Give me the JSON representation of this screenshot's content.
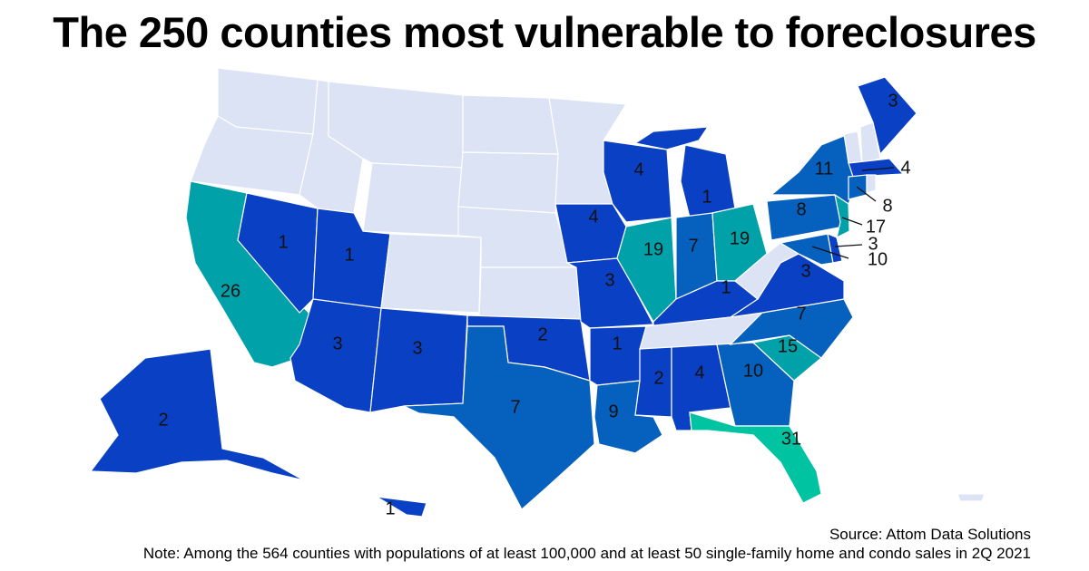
{
  "title": "The 250 counties most vulnerable to foreclosures",
  "source": "Source: Attom Data Solutions",
  "note": "Note: Among the 564 counties with populations of at least 100,000 and at least 50 single-family home and condo sales in 2Q 2021",
  "colors": {
    "none": "#dbe3f4",
    "low": "#0a40c3",
    "mid": "#0660bd",
    "high": "#00a1a9",
    "top": "#00c3a2",
    "border": "#ffffff"
  },
  "counts": {
    "CA": 26,
    "NV": 1,
    "UT": 1,
    "AZ": 3,
    "NM": 3,
    "TX": 7,
    "OK": 2,
    "AK": 2,
    "HI": 1,
    "IA": 4,
    "MO": 3,
    "AR": 1,
    "LA": 9,
    "WI": 4,
    "IL": 19,
    "MI": 1,
    "IN": 7,
    "OH": 19,
    "KY": 1,
    "MS": 2,
    "AL": 4,
    "GA": 10,
    "FL": 31,
    "SC": 15,
    "NC": 7,
    "VA": 3,
    "PA": 8,
    "NY": 11,
    "ME": 3,
    "MA": 4,
    "CT": 8,
    "NJ": 17,
    "DE": 3,
    "MD": 10
  }
}
